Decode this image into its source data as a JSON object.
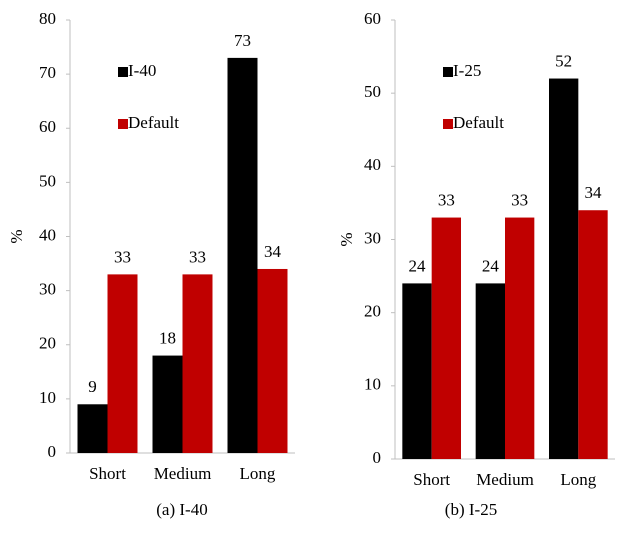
{
  "chart_data": [
    {
      "type": "bar",
      "caption": "(a) I-40",
      "y_label": "%",
      "categories": [
        "Short",
        "Medium",
        "Long"
      ],
      "series": [
        {
          "name": "I-40",
          "color": "#000000",
          "values": [
            9,
            18,
            73
          ]
        },
        {
          "name": "Default",
          "color": "#c00000",
          "values": [
            33,
            33,
            34
          ]
        }
      ],
      "ylim": [
        0,
        80
      ],
      "yticks": [
        0,
        10,
        20,
        30,
        40,
        50,
        60,
        70,
        80
      ],
      "legend": "upper left"
    },
    {
      "type": "bar",
      "caption": "(b) I-25",
      "y_label": "%",
      "categories": [
        "Short",
        "Medium",
        "Long"
      ],
      "series": [
        {
          "name": "I-25",
          "color": "#000000",
          "values": [
            24,
            24,
            52
          ]
        },
        {
          "name": "Default",
          "color": "#c00000",
          "values": [
            33,
            33,
            34
          ]
        }
      ],
      "ylim": [
        0,
        60
      ],
      "yticks": [
        0,
        10,
        20,
        30,
        40,
        50,
        60
      ],
      "legend": "upper left"
    }
  ]
}
